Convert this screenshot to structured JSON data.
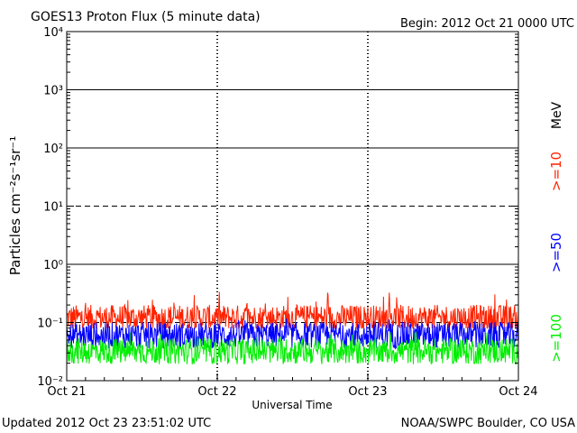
{
  "chart_data": {
    "type": "line",
    "title": "GOES13 Proton Flux (5 minute data)",
    "begin_label": "Begin: 2012 Oct 21 0000 UTC",
    "xlabel": "Universal Time",
    "ylabel": "Particles cm⁻²s⁻¹sr⁻¹",
    "y_scale": "log",
    "ylim": [
      0.01,
      10000
    ],
    "y_tick_labels": [
      "10⁻²",
      "10⁻¹",
      "10⁰",
      "10¹",
      "10²",
      "10³",
      "10⁴"
    ],
    "x_categories": [
      "Oct 21",
      "Oct 22",
      "Oct 23",
      "Oct 24"
    ],
    "xlim_days": [
      0,
      3
    ],
    "unit_label": "MeV",
    "grid": {
      "solid_levels": [
        1,
        100,
        1000
      ],
      "dashed_levels": [
        0.1,
        10
      ]
    },
    "series": [
      {
        "name": ">=10",
        "color": "#ff2200",
        "baseline": 0.12,
        "min": 0.08,
        "max": 0.35
      },
      {
        "name": ">=50",
        "color": "#0000ff",
        "baseline": 0.06,
        "min": 0.035,
        "max": 0.12
      },
      {
        "name": ">=100",
        "color": "#00ee00",
        "baseline": 0.032,
        "min": 0.018,
        "max": 0.07
      }
    ]
  },
  "footer": {
    "updated": "Updated 2012 Oct 23 23:51:02 UTC",
    "credit": "NOAA/SWPC Boulder, CO USA"
  }
}
